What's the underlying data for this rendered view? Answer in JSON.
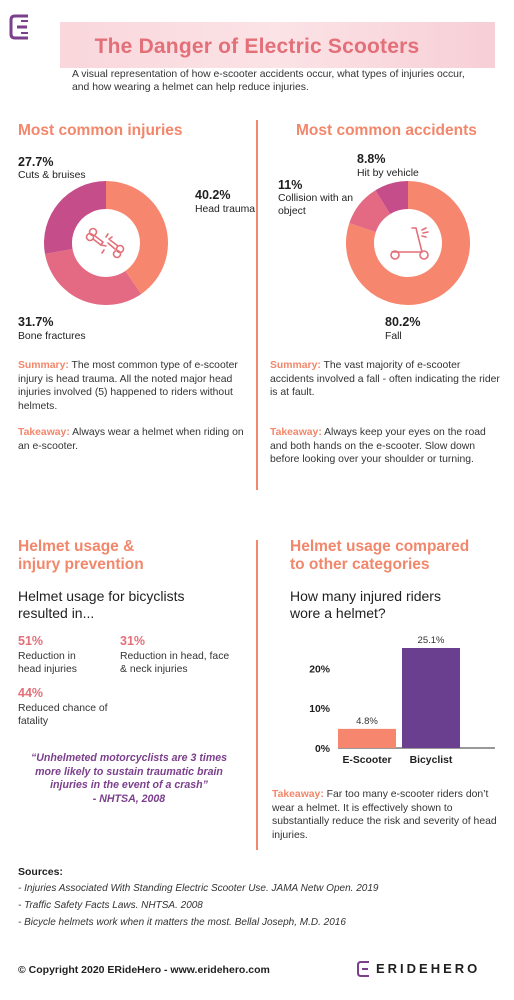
{
  "brand": {
    "logo_icon": "e-logo-icon",
    "name": "ERIDEHERO"
  },
  "header": {
    "title": "The Danger of Electric Scooters",
    "subtitle": "A visual representation of how e-scooter accidents occur, what types of injuries occur, and how wearing a helmet can help reduce injuries."
  },
  "colors": {
    "accent": "#f2876b",
    "pink": "#e36f78",
    "magenta": "#c54d89",
    "purple": "#6b3f8f"
  },
  "injuries": {
    "title": "Most common injuries",
    "center_icon": "broken-bone-icon",
    "summary_label": "Summary:",
    "summary_text": " The most common type of e-scooter injury is head trauma. All the noted major head injuries involved (5) happened to riders without helmets.",
    "takeaway_label": "Takeaway:",
    "takeaway_text": " Always wear a helmet when riding on an e-scooter."
  },
  "accidents": {
    "title": "Most common accidents",
    "center_icon": "scooter-icon",
    "summary_label": "Summary:",
    "summary_text": " The vast majority of e-scooter accidents involved a fall - often indicating the rider is at fault.",
    "takeaway_label": "Takeaway:",
    "takeaway_text": " Always keep your eyes on the road and both hands on the e-scooter. Slow down before looking over your shoulder or turning."
  },
  "helmet": {
    "title_line1": "Helmet usage &",
    "title_line2": "injury prevention",
    "lead": "Helmet usage for bicyclists resulted in...",
    "stats": [
      {
        "pct": "51%",
        "label": "Reduction in head injuries"
      },
      {
        "pct": "31%",
        "label": "Reduction in head, face & neck injuries"
      },
      {
        "pct": "44%",
        "label": "Reduced chance of fatality"
      }
    ],
    "quote": "“Unhelmeted motorcyclists are 3 times more likely to sustain traumatic brain injuries in the event of a crash”",
    "quote_source": "- NHTSA, 2008"
  },
  "comparison": {
    "title_line1": "Helmet usage compared",
    "title_line2": "to other categories",
    "lead": "How many injured riders wore a helmet?",
    "takeaway_label": "Takeaway:",
    "takeaway_text": " Far too many e-scooter riders don’t wear a helmet. It is effectively shown to substantially reduce the risk and severity of head injuries."
  },
  "chart_data": [
    {
      "type": "pie",
      "title": "Most common injuries",
      "donut": true,
      "slices": [
        {
          "label": "Head trauma",
          "value": 40.2,
          "display": "40.2%",
          "color": "#f7866f"
        },
        {
          "label": "Bone fractures",
          "value": 31.7,
          "display": "31.7%",
          "color": "#e46a84"
        },
        {
          "label": "Cuts & bruises",
          "value": 27.7,
          "display": "27.7%",
          "color": "#c54d89"
        }
      ]
    },
    {
      "type": "pie",
      "title": "Most common accidents",
      "donut": true,
      "slices": [
        {
          "label": "Fall",
          "value": 80.2,
          "display": "80.2%",
          "color": "#f7866f"
        },
        {
          "label": "Collision with an object",
          "value": 11,
          "display": "11%",
          "color": "#e46a84"
        },
        {
          "label": "Hit by vehicle",
          "value": 8.8,
          "display": "8.8%",
          "color": "#c54d89"
        }
      ]
    },
    {
      "type": "bar",
      "categories": [
        "E-Scooter",
        "Bicyclist"
      ],
      "values": [
        4.8,
        25.1
      ],
      "value_labels": [
        "4.8%",
        "25.1%"
      ],
      "colors": [
        "#f7866f",
        "#6b3f8f"
      ],
      "yticks": [
        0,
        10,
        20
      ],
      "ytick_labels": [
        "0%",
        "10%",
        "20%"
      ],
      "ylim": [
        0,
        25.1
      ]
    }
  ],
  "sources": {
    "title": "Sources:",
    "items": [
      "- Injuries Associated With Standing Electric Scooter Use. JAMA Netw Open. 2019",
      "- Traffic Safety Facts Laws. NHTSA. 2008",
      "- Bicycle helmets work when it matters the most. Bellal Joseph, M.D. 2016"
    ]
  },
  "footer": {
    "copyright": "© Copyright 2020 ERideHero - www.eridehero.com"
  }
}
